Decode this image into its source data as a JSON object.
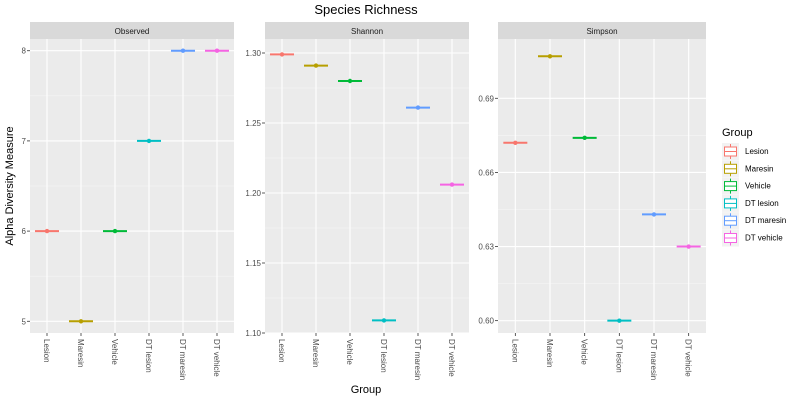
{
  "chart_data": {
    "type": "scatter",
    "title": "Species Richness",
    "xlabel": "Group",
    "ylabel": "Alpha Diversity Measure",
    "grid": true,
    "legend_position": "right",
    "categories": [
      "Lesion",
      "Maresin",
      "Vehicle",
      "DT lesion",
      "DT maresin",
      "DT vehicle"
    ],
    "legend": {
      "title": "Group",
      "entries": [
        "Lesion",
        "Maresin",
        "Vehicle",
        "DT lesion",
        "DT maresin",
        "DT vehicle"
      ]
    },
    "colors": [
      "#F8766D",
      "#B79F00",
      "#00BA38",
      "#00BFC4",
      "#619CFF",
      "#F564E3"
    ],
    "panels": [
      {
        "name": "Observed",
        "ylim": [
          4.87,
          8.13
        ],
        "yticks": [
          5,
          6,
          7,
          8
        ],
        "ytick_labels": [
          "5",
          "6",
          "7",
          "8"
        ],
        "values": [
          6,
          5,
          6,
          7,
          8,
          8
        ]
      },
      {
        "name": "Shannon",
        "ylim": [
          1.1,
          1.31
        ],
        "yticks": [
          1.1,
          1.15,
          1.2,
          1.25,
          1.3
        ],
        "ytick_labels": [
          "1.10",
          "1.15",
          "1.20",
          "1.25",
          "1.30"
        ],
        "values": [
          1.299,
          1.291,
          1.28,
          1.109,
          1.261,
          1.206
        ]
      },
      {
        "name": "Simpson",
        "ylim": [
          0.595,
          0.714
        ],
        "yticks": [
          0.6,
          0.63,
          0.66,
          0.69
        ],
        "ytick_labels": [
          "0.60",
          "0.63",
          "0.66",
          "0.69"
        ],
        "values": [
          0.672,
          0.707,
          0.674,
          0.6,
          0.643,
          0.63
        ]
      }
    ]
  }
}
